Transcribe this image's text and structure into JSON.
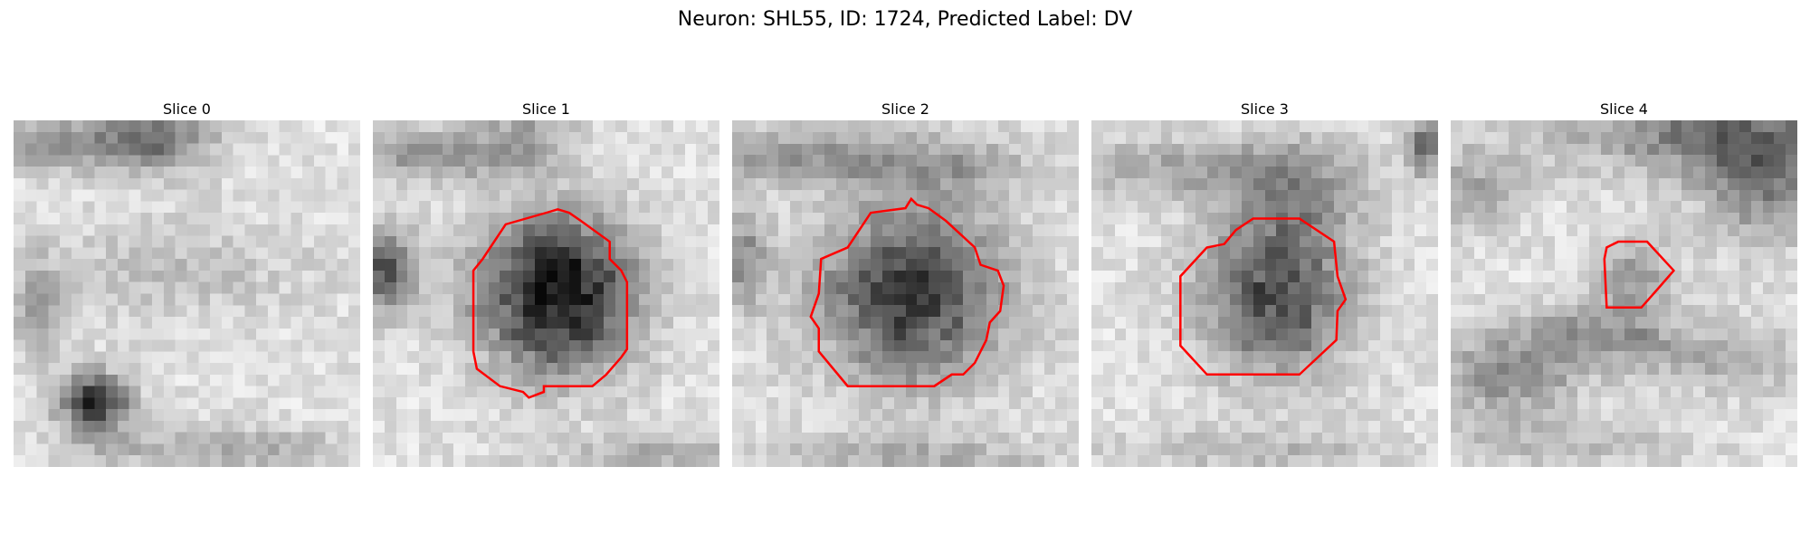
{
  "figure": {
    "title": "Neuron: SHL55, ID: 1724, Predicted Label: DV",
    "outline_color": "#ff0000"
  },
  "panels": [
    {
      "title": "Slice 0"
    },
    {
      "title": "Slice 1"
    },
    {
      "title": "Slice 2"
    },
    {
      "title": "Slice 3"
    },
    {
      "title": "Slice 4"
    }
  ]
}
